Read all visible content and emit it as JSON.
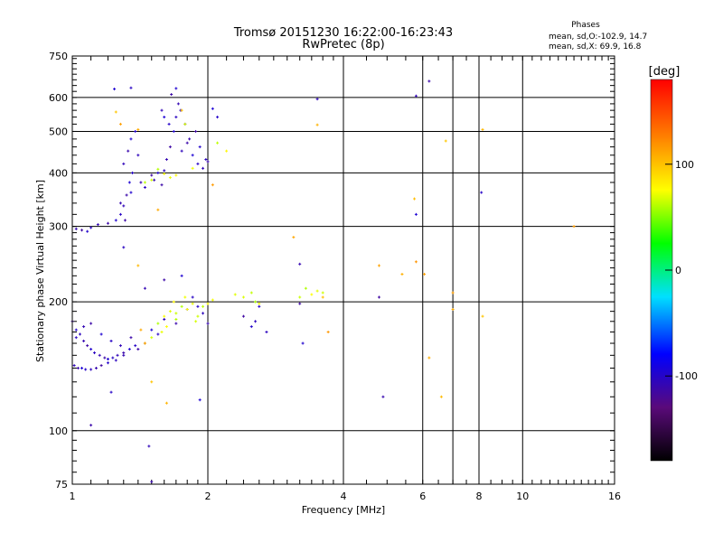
{
  "title": {
    "line1": "Tromsø 20151230 16:22:00-16:23:43",
    "line2": "RwPretec (8p)"
  },
  "phases_box": {
    "heading": "Phases",
    "line_o": "mean, sd,O:-102.9, 14.7",
    "line_x": "mean, sd,X:  69.9, 16.8"
  },
  "colorbar": {
    "label": "[deg]",
    "range": [
      -180,
      180
    ],
    "ticks": [
      {
        "value": 100,
        "label": "100"
      },
      {
        "value": 0,
        "label": "0"
      },
      {
        "value": -100,
        "label": "-100"
      }
    ],
    "colors": [
      "#000000",
      "#5a0a7a",
      "#0000ff",
      "#00e0ff",
      "#00ff00",
      "#ffff00",
      "#ff8000",
      "#ff0000"
    ]
  },
  "chart_data": {
    "type": "scatter",
    "xlabel": "Frequency [MHz]",
    "ylabel": "Stationary phase Virtual Height [km]",
    "x_scale": "log",
    "y_scale": "log",
    "xlim": [
      1,
      16
    ],
    "ylim": [
      75,
      750
    ],
    "grid": true,
    "x_ticks": [
      {
        "value": 1,
        "label": "1"
      },
      {
        "value": 2,
        "label": "2"
      },
      {
        "value": 4,
        "label": "4"
      },
      {
        "value": 6,
        "label": "6"
      },
      {
        "value": 8,
        "label": "8"
      },
      {
        "value": 10,
        "label": "10"
      },
      {
        "value": 16,
        "label": "16"
      }
    ],
    "x_grid": [
      2,
      4,
      6,
      7,
      8,
      10
    ],
    "y_ticks": [
      {
        "value": 75,
        "label": "75"
      },
      {
        "value": 100,
        "label": "100"
      },
      {
        "value": 200,
        "label": "200"
      },
      {
        "value": 300,
        "label": "300"
      },
      {
        "value": 400,
        "label": "400"
      },
      {
        "value": 500,
        "label": "500"
      },
      {
        "value": 600,
        "label": "600"
      },
      {
        "value": 750,
        "label": "750"
      }
    ],
    "y_grid": [
      100,
      200,
      300,
      400,
      500,
      600
    ],
    "series": [
      {
        "mode": "O",
        "phase_deg": -103,
        "points": [
          [
            1.0,
            180
          ],
          [
            1.02,
            172
          ],
          [
            1.04,
            168
          ],
          [
            1.06,
            162
          ],
          [
            1.08,
            158
          ],
          [
            1.1,
            155
          ],
          [
            1.12,
            152
          ],
          [
            1.15,
            150
          ],
          [
            1.18,
            148
          ],
          [
            1.2,
            147
          ],
          [
            1.23,
            148
          ],
          [
            1.26,
            150
          ],
          [
            1.3,
            152
          ],
          [
            1.34,
            155
          ],
          [
            1.38,
            158
          ],
          [
            1.01,
            142
          ],
          [
            1.03,
            140
          ],
          [
            1.05,
            140
          ],
          [
            1.07,
            139
          ],
          [
            1.1,
            139
          ],
          [
            1.13,
            140
          ],
          [
            1.16,
            142
          ],
          [
            1.2,
            144
          ],
          [
            1.25,
            146
          ],
          [
            1.3,
            150
          ],
          [
            1.4,
            155
          ],
          [
            1.45,
            160
          ],
          [
            1.02,
            165
          ],
          [
            1.06,
            175
          ],
          [
            1.1,
            178
          ],
          [
            1.16,
            168
          ],
          [
            1.22,
            162
          ],
          [
            1.28,
            158
          ],
          [
            1.35,
            165
          ],
          [
            1.5,
            172
          ],
          [
            1.55,
            168
          ],
          [
            1.6,
            182
          ],
          [
            1.7,
            178
          ],
          [
            1.8,
            192
          ],
          [
            1.9,
            195
          ],
          [
            1.95,
            188
          ],
          [
            2.0,
            178
          ],
          [
            2.4,
            185
          ],
          [
            2.5,
            175
          ],
          [
            2.55,
            180
          ],
          [
            1.02,
            296
          ],
          [
            1.05,
            294
          ],
          [
            1.08,
            292
          ],
          [
            1.1,
            298
          ],
          [
            1.14,
            303
          ],
          [
            1.2,
            305
          ],
          [
            1.25,
            310
          ],
          [
            1.28,
            320
          ],
          [
            1.3,
            335
          ],
          [
            1.32,
            355
          ],
          [
            1.34,
            380
          ],
          [
            1.36,
            400
          ],
          [
            1.3,
            420
          ],
          [
            1.33,
            450
          ],
          [
            1.35,
            480
          ],
          [
            1.38,
            500
          ],
          [
            1.4,
            440
          ],
          [
            1.42,
            380
          ],
          [
            1.5,
            395
          ],
          [
            1.55,
            400
          ],
          [
            1.6,
            405
          ],
          [
            1.62,
            430
          ],
          [
            1.65,
            460
          ],
          [
            1.68,
            500
          ],
          [
            1.7,
            540
          ],
          [
            1.72,
            580
          ],
          [
            1.66,
            610
          ],
          [
            1.7,
            630
          ],
          [
            1.74,
            560
          ],
          [
            1.78,
            520
          ],
          [
            1.8,
            470
          ],
          [
            1.85,
            440
          ],
          [
            1.9,
            420
          ],
          [
            1.95,
            410
          ],
          [
            2.0,
            425
          ],
          [
            1.6,
            540
          ],
          [
            1.64,
            520
          ],
          [
            1.75,
            450
          ],
          [
            1.82,
            480
          ],
          [
            1.88,
            500
          ],
          [
            1.92,
            460
          ],
          [
            1.98,
            430
          ],
          [
            1.28,
            340
          ],
          [
            1.31,
            310
          ],
          [
            1.35,
            360
          ],
          [
            1.45,
            370
          ],
          [
            1.52,
            385
          ],
          [
            1.58,
            375
          ],
          [
            1.24,
            628
          ],
          [
            1.35,
            632
          ],
          [
            1.58,
            560
          ],
          [
            1.1,
            103
          ],
          [
            1.92,
            118
          ],
          [
            1.22,
            123
          ],
          [
            1.48,
            92
          ],
          [
            1.5,
            76
          ],
          [
            2.05,
            565
          ],
          [
            2.1,
            540
          ],
          [
            3.5,
            595
          ],
          [
            4.9,
            120
          ],
          [
            4.8,
            205
          ],
          [
            2.6,
            195
          ],
          [
            2.7,
            170
          ],
          [
            3.2,
            245
          ],
          [
            3.2,
            198
          ],
          [
            3.25,
            160
          ],
          [
            1.3,
            268
          ],
          [
            1.45,
            215
          ],
          [
            1.6,
            225
          ],
          [
            1.75,
            230
          ],
          [
            1.85,
            205
          ],
          [
            5.8,
            605
          ],
          [
            6.2,
            655
          ],
          [
            5.8,
            320
          ],
          [
            8.1,
            360
          ]
        ]
      },
      {
        "mode": "X",
        "phase_deg": 70,
        "points": [
          [
            1.55,
            178
          ],
          [
            1.6,
            185
          ],
          [
            1.65,
            190
          ],
          [
            1.7,
            188
          ],
          [
            1.75,
            195
          ],
          [
            1.8,
            192
          ],
          [
            1.85,
            198
          ],
          [
            1.9,
            185
          ],
          [
            1.7,
            182
          ],
          [
            1.62,
            175
          ],
          [
            1.58,
            170
          ],
          [
            1.5,
            165
          ],
          [
            1.45,
            160
          ],
          [
            1.68,
            200
          ],
          [
            1.78,
            205
          ],
          [
            1.88,
            180
          ],
          [
            1.95,
            195
          ],
          [
            2.0,
            198
          ],
          [
            2.05,
            202
          ],
          [
            2.4,
            205
          ],
          [
            2.5,
            210
          ],
          [
            2.55,
            200
          ],
          [
            2.6,
            198
          ],
          [
            2.3,
            208
          ],
          [
            3.2,
            205
          ],
          [
            3.3,
            215
          ],
          [
            3.4,
            208
          ],
          [
            3.5,
            212
          ],
          [
            3.6,
            210
          ],
          [
            1.55,
            408
          ],
          [
            1.6,
            398
          ],
          [
            1.65,
            390
          ],
          [
            1.5,
            385
          ],
          [
            1.45,
            380
          ],
          [
            1.7,
            395
          ],
          [
            1.85,
            410
          ],
          [
            1.78,
            520
          ],
          [
            2.1,
            470
          ],
          [
            2.2,
            450
          ]
        ]
      },
      {
        "mode": "scattered",
        "phase_deg": 110,
        "points": [
          [
            1.25,
            555
          ],
          [
            1.28,
            520
          ],
          [
            1.4,
            505
          ],
          [
            1.4,
            243
          ],
          [
            1.5,
            130
          ],
          [
            1.45,
            160
          ],
          [
            1.55,
            328
          ],
          [
            1.62,
            116
          ],
          [
            1.75,
            560
          ],
          [
            2.05,
            375
          ],
          [
            3.1,
            283
          ],
          [
            3.5,
            518
          ],
          [
            3.6,
            205
          ],
          [
            3.7,
            170
          ],
          [
            4.8,
            243
          ],
          [
            5.4,
            232
          ],
          [
            5.75,
            348
          ],
          [
            5.8,
            248
          ],
          [
            6.05,
            232
          ],
          [
            6.2,
            148
          ],
          [
            6.6,
            120
          ],
          [
            6.75,
            475
          ],
          [
            7.0,
            210
          ],
          [
            7.0,
            192
          ],
          [
            8.15,
            505
          ],
          [
            8.15,
            185
          ],
          [
            13.0,
            300
          ],
          [
            1.42,
            172
          ]
        ]
      }
    ]
  }
}
